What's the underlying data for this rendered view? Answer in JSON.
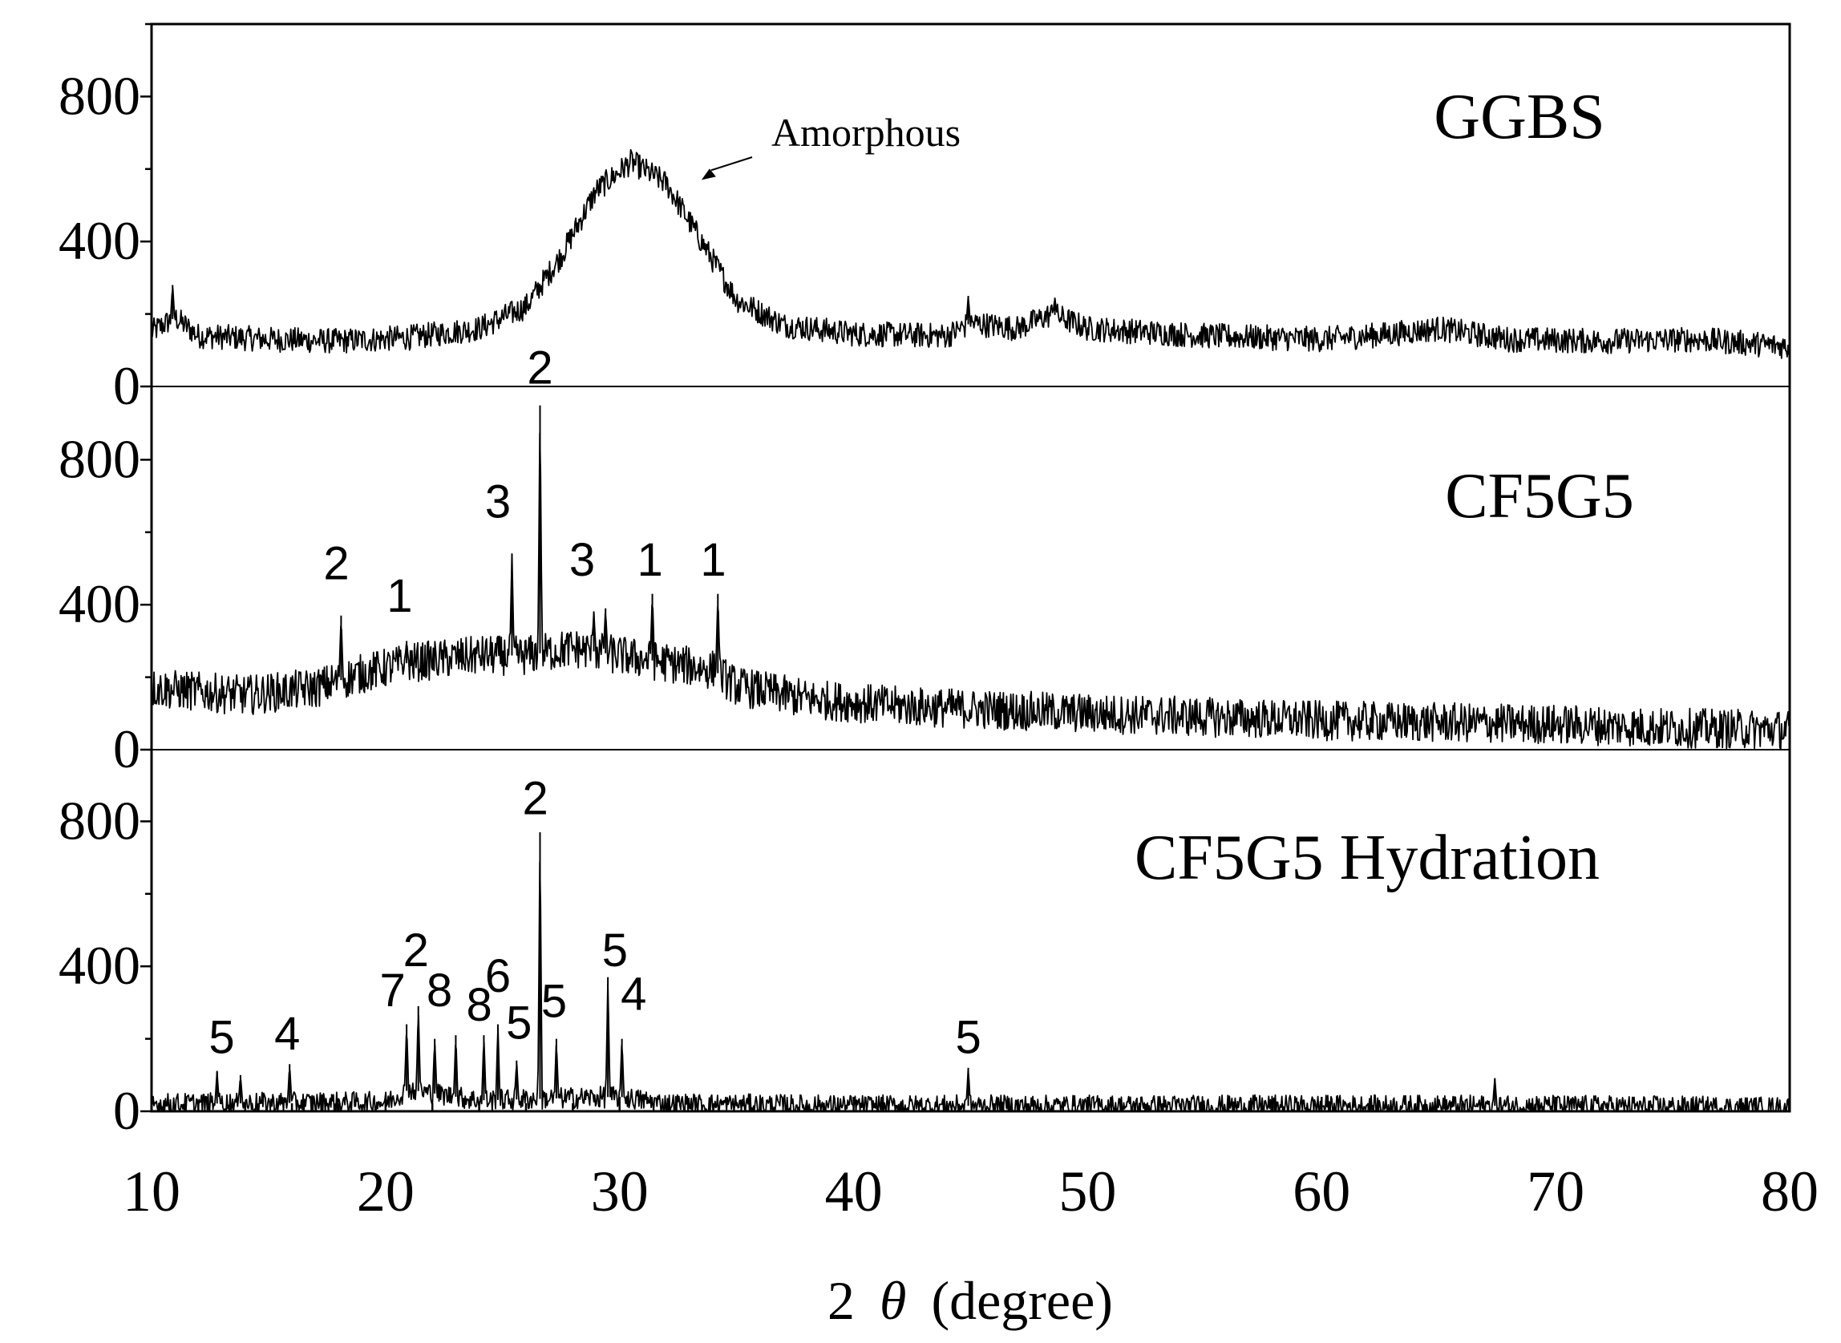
{
  "chart_data": {
    "type": "line",
    "xlabel_prefix": "2",
    "xlabel_symbol": "θ",
    "xlabel_suffix": "(degree)",
    "xlim": [
      10,
      80
    ],
    "x_ticks": [
      "10",
      "20",
      "30",
      "40",
      "50",
      "60",
      "70",
      "80"
    ],
    "x_tick_values": [
      10,
      20,
      30,
      40,
      50,
      60,
      70,
      80
    ],
    "panels": [
      {
        "name": "GGBS",
        "ylim": [
          0,
          1000
        ],
        "y_ticks": [
          "0",
          "400",
          "800"
        ],
        "y_tick_values": [
          0,
          400,
          800
        ],
        "baseline_noise": 35,
        "series": [
          [
            10,
            150
          ],
          [
            11,
            190
          ],
          [
            12,
            140
          ],
          [
            15,
            130
          ],
          [
            18,
            125
          ],
          [
            21,
            135
          ],
          [
            24,
            160
          ],
          [
            26,
            220
          ],
          [
            27.5,
            360
          ],
          [
            29,
            540
          ],
          [
            30.5,
            620
          ],
          [
            32,
            560
          ],
          [
            33.5,
            400
          ],
          [
            35,
            240
          ],
          [
            37,
            170
          ],
          [
            40,
            145
          ],
          [
            44,
            140
          ],
          [
            45,
            175
          ],
          [
            47,
            160
          ],
          [
            48.5,
            200
          ],
          [
            50,
            160
          ],
          [
            55,
            140
          ],
          [
            60,
            130
          ],
          [
            63,
            145
          ],
          [
            65,
            160
          ],
          [
            68,
            130
          ],
          [
            72,
            125
          ],
          [
            76,
            130
          ],
          [
            80,
            110
          ]
        ],
        "spikes": [
          [
            10.9,
            280
          ],
          [
            44.9,
            250
          ],
          [
            48.6,
            245
          ]
        ],
        "peak_labels": [],
        "annotation": {
          "text": "Amorphous",
          "x": 33.5,
          "y": 570
        }
      },
      {
        "name": "CF5G5",
        "ylim": [
          0,
          1000
        ],
        "y_ticks": [
          "0",
          "400",
          "800"
        ],
        "y_tick_values": [
          0,
          400,
          800
        ],
        "baseline_noise": 55,
        "series": [
          [
            10,
            170
          ],
          [
            14,
            150
          ],
          [
            17,
            170
          ],
          [
            19,
            210
          ],
          [
            21,
            240
          ],
          [
            24,
            260
          ],
          [
            26,
            260
          ],
          [
            28,
            280
          ],
          [
            30,
            260
          ],
          [
            32,
            240
          ],
          [
            34,
            220
          ],
          [
            35,
            175
          ],
          [
            38,
            140
          ],
          [
            42,
            120
          ],
          [
            46,
            110
          ],
          [
            50,
            100
          ],
          [
            55,
            90
          ],
          [
            60,
            80
          ],
          [
            65,
            75
          ],
          [
            70,
            70
          ],
          [
            75,
            60
          ],
          [
            80,
            55
          ]
        ],
        "spikes": [
          [
            18.1,
            370
          ],
          [
            20.9,
            300
          ],
          [
            25.4,
            540
          ],
          [
            26.6,
            950
          ],
          [
            28.9,
            380
          ],
          [
            29.4,
            390
          ],
          [
            31.4,
            430
          ],
          [
            34.2,
            430
          ]
        ],
        "peak_labels": [
          {
            "label": "2",
            "x": 17.9,
            "y": 470
          },
          {
            "label": "1",
            "x": 20.6,
            "y": 380
          },
          {
            "label": "3",
            "x": 24.8,
            "y": 640
          },
          {
            "label": "2",
            "x": 26.6,
            "y": 1010
          },
          {
            "label": "3",
            "x": 28.4,
            "y": 480
          },
          {
            "label": "1",
            "x": 31.3,
            "y": 480
          },
          {
            "label": "1",
            "x": 34.0,
            "y": 480
          }
        ],
        "annotation": null
      },
      {
        "name": "CF5G5 Hydration",
        "ylim": [
          0,
          1000
        ],
        "y_ticks": [
          "0",
          "400",
          "800"
        ],
        "y_tick_values": [
          0,
          400,
          800
        ],
        "baseline_noise": 30,
        "series": [
          [
            10,
            20
          ],
          [
            20,
            25
          ],
          [
            21,
            60
          ],
          [
            22,
            50
          ],
          [
            24,
            30
          ],
          [
            30,
            40
          ],
          [
            32,
            20
          ],
          [
            40,
            15
          ],
          [
            50,
            15
          ],
          [
            60,
            15
          ],
          [
            70,
            15
          ],
          [
            80,
            10
          ]
        ],
        "spikes": [
          [
            12.8,
            110
          ],
          [
            13.8,
            100
          ],
          [
            15.9,
            130
          ],
          [
            20.9,
            240
          ],
          [
            21.4,
            290
          ],
          [
            22.1,
            200
          ],
          [
            23.0,
            210
          ],
          [
            24.2,
            210
          ],
          [
            24.8,
            240
          ],
          [
            25.6,
            140
          ],
          [
            26.6,
            770
          ],
          [
            27.3,
            200
          ],
          [
            29.5,
            370
          ],
          [
            30.1,
            200
          ],
          [
            44.9,
            120
          ],
          [
            67.4,
            90
          ]
        ],
        "peak_labels": [
          {
            "label": "5",
            "x": 13.0,
            "y": 160
          },
          {
            "label": "4",
            "x": 15.8,
            "y": 170
          },
          {
            "label": "7",
            "x": 20.3,
            "y": 290
          },
          {
            "label": "2",
            "x": 21.3,
            "y": 400
          },
          {
            "label": "8",
            "x": 22.3,
            "y": 290
          },
          {
            "label": "8",
            "x": 24.0,
            "y": 250
          },
          {
            "label": "6",
            "x": 24.8,
            "y": 330
          },
          {
            "label": "5",
            "x": 25.7,
            "y": 200
          },
          {
            "label": "5",
            "x": 27.2,
            "y": 260
          },
          {
            "label": "2",
            "x": 26.4,
            "y": 820
          },
          {
            "label": "5",
            "x": 29.8,
            "y": 400
          },
          {
            "label": "4",
            "x": 30.6,
            "y": 280
          },
          {
            "label": "5",
            "x": 44.9,
            "y": 160
          }
        ],
        "annotation": null
      }
    ]
  }
}
